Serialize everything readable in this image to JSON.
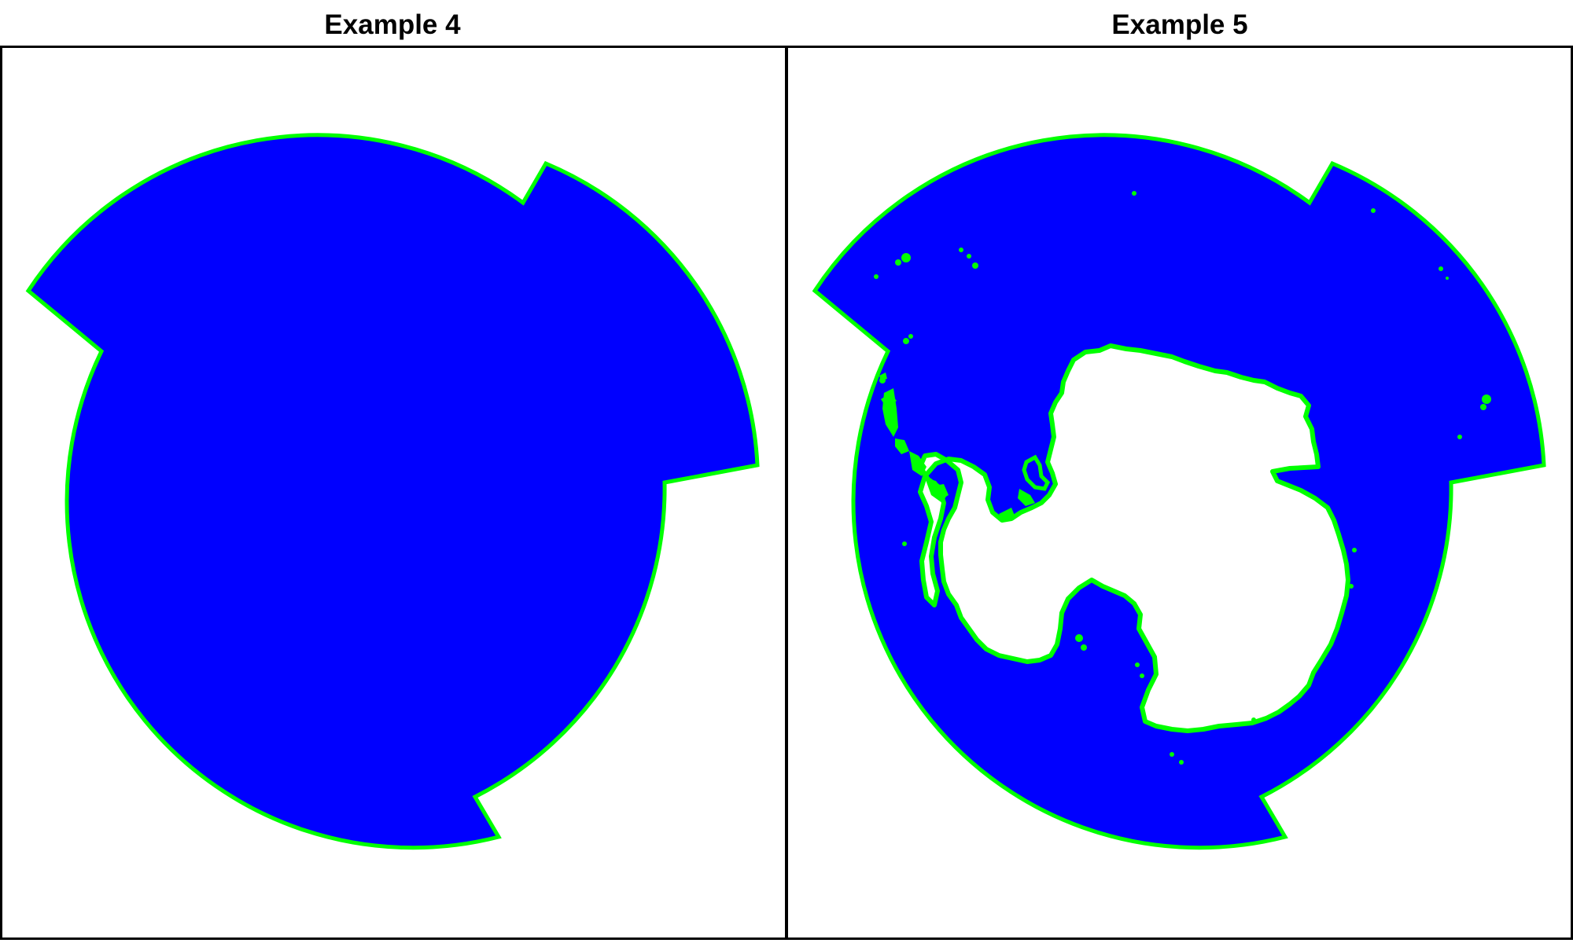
{
  "panels": [
    {
      "title": "Example 4",
      "ocean_color": "#0000ff",
      "outline_color": "#00ff00",
      "shows_landmass": false
    },
    {
      "title": "Example 5",
      "ocean_color": "#0000ff",
      "outline_color": "#00ff00",
      "land_color": "#ffffff",
      "shows_landmass": true,
      "landmass": "antarctica"
    }
  ],
  "background_color": "#ffffff",
  "frame_color": "#000000"
}
